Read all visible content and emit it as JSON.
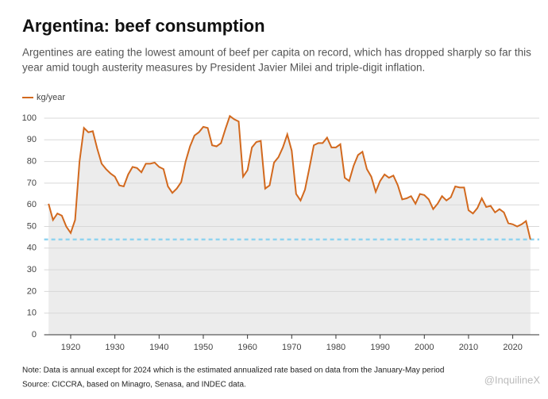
{
  "chart_data": {
    "type": "line",
    "title": "Argentina: beef consumption",
    "subtitle": [
      "Argentines are eating the lowest amount of beef per capita on record, which has dropped sharply so far this",
      "year amid tough austerity measures by President Javier Milei and triple-digit inflation."
    ],
    "notes": [
      "Note: Data is annual except for 2024 which is the estimated annualized rate based on data from the January-May period",
      "Source: CICCRA, based on Minagro, Senasa, and INDEC data."
    ],
    "watermark": "@InquilineX",
    "x": [
      1915,
      1916,
      1917,
      1918,
      1919,
      1920,
      1921,
      1922,
      1923,
      1924,
      1925,
      1926,
      1927,
      1928,
      1929,
      1930,
      1931,
      1932,
      1933,
      1934,
      1935,
      1936,
      1937,
      1938,
      1939,
      1940,
      1941,
      1942,
      1943,
      1944,
      1945,
      1946,
      1947,
      1948,
      1949,
      1950,
      1951,
      1952,
      1953,
      1954,
      1955,
      1956,
      1957,
      1958,
      1959,
      1960,
      1961,
      1962,
      1963,
      1964,
      1965,
      1966,
      1967,
      1968,
      1969,
      1970,
      1971,
      1972,
      1973,
      1974,
      1975,
      1976,
      1977,
      1978,
      1979,
      1980,
      1981,
      1982,
      1983,
      1984,
      1985,
      1986,
      1987,
      1988,
      1989,
      1990,
      1991,
      1992,
      1993,
      1994,
      1995,
      1996,
      1997,
      1998,
      1999,
      2000,
      2001,
      2002,
      2003,
      2004,
      2005,
      2006,
      2007,
      2008,
      2009,
      2010,
      2011,
      2012,
      2013,
      2014,
      2015,
      2016,
      2017,
      2018,
      2019,
      2020,
      2021,
      2022,
      2023,
      2024
    ],
    "series": [
      {
        "name": "kg/year",
        "color": "#d2691e",
        "values": [
          60.5,
          53,
          56,
          55,
          50,
          47,
          53,
          80,
          95.5,
          93.5,
          94,
          86,
          79,
          76.5,
          74.5,
          73,
          69,
          68.5,
          74,
          77.5,
          77,
          75,
          79,
          79,
          79.5,
          77.5,
          76.5,
          68.5,
          65.5,
          67.5,
          70.5,
          80,
          87,
          92,
          93.5,
          96,
          95.5,
          87.5,
          87,
          88.5,
          95,
          101,
          99.5,
          98.5,
          73,
          76,
          86.5,
          89,
          89.5,
          67.5,
          69,
          79.5,
          82,
          86.5,
          92.5,
          85,
          65,
          62,
          67,
          77,
          87.5,
          88.5,
          88.5,
          91,
          86.5,
          86.5,
          88,
          72.5,
          71,
          78,
          83,
          84.5,
          76.5,
          73,
          66,
          71,
          74,
          72.5,
          73.5,
          69,
          62.5,
          63,
          64,
          60.5,
          65,
          64.5,
          62.5,
          58,
          60.5,
          64,
          62,
          63.5,
          68.5,
          68,
          68,
          57.5,
          56,
          58.5,
          63,
          59,
          59.5,
          56.5,
          58,
          56.5,
          51.5,
          51,
          50,
          51,
          52.5,
          44
        ]
      }
    ],
    "reference_line": {
      "value": 44,
      "color": "#8fd3f0"
    },
    "area_color": "#ececec",
    "xlim": [
      1914,
      2026
    ],
    "xticks": [
      1920,
      1930,
      1940,
      1950,
      1960,
      1970,
      1980,
      1990,
      2000,
      2010,
      2020
    ],
    "ylim": [
      0,
      100
    ],
    "yticks": [
      0,
      10,
      20,
      30,
      40,
      50,
      60,
      70,
      80,
      90,
      100
    ],
    "grid": true
  }
}
